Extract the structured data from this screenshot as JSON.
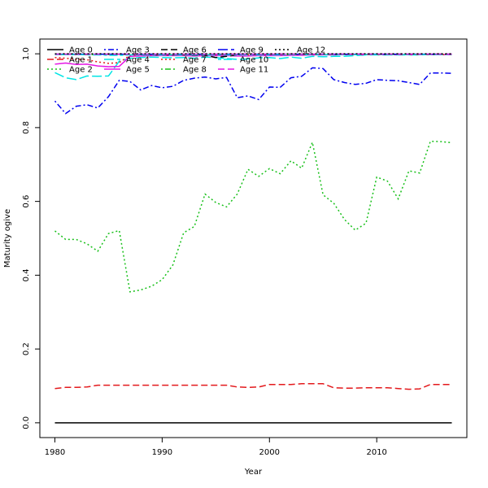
{
  "chart_data": {
    "type": "line",
    "title": "",
    "xlabel": "Year",
    "ylabel": "Maturity ogive",
    "xlim": [
      1978.6,
      2018.4
    ],
    "ylim": [
      -0.04,
      1.04
    ],
    "xticks": [
      1980,
      1990,
      2000,
      2010
    ],
    "yticks": [
      0.0,
      0.2,
      0.4,
      0.6,
      0.8,
      1.0
    ],
    "grid": false,
    "legend_position": "top-left",
    "x": [
      1980,
      1981,
      1982,
      1983,
      1984,
      1985,
      1986,
      1987,
      1988,
      1989,
      1990,
      1991,
      1992,
      1993,
      1994,
      1995,
      1996,
      1997,
      1998,
      1999,
      2000,
      2001,
      2002,
      2003,
      2004,
      2005,
      2006,
      2007,
      2008,
      2009,
      2010,
      2011,
      2012,
      2013,
      2014,
      2015,
      2016,
      2017
    ],
    "series": [
      {
        "name": "Age 0",
        "color": "#000000",
        "dash": "solid",
        "values": [
          0,
          0,
          0,
          0,
          0,
          0,
          0,
          0,
          0,
          0,
          0,
          0,
          0,
          0,
          0,
          0,
          0,
          0,
          0,
          0,
          0,
          0,
          0,
          0,
          0,
          0,
          0,
          0,
          0,
          0,
          0,
          0,
          0,
          0,
          0,
          0,
          0,
          0
        ]
      },
      {
        "name": "Age 1",
        "color": "#e3191c",
        "dash": "dashed",
        "values": [
          0.093,
          0.096,
          0.096,
          0.097,
          0.102,
          0.102,
          0.102,
          0.102,
          0.102,
          0.102,
          0.102,
          0.102,
          0.102,
          0.102,
          0.102,
          0.102,
          0.102,
          0.097,
          0.096,
          0.097,
          0.104,
          0.104,
          0.104,
          0.106,
          0.106,
          0.106,
          0.095,
          0.094,
          0.094,
          0.095,
          0.095,
          0.095,
          0.093,
          0.091,
          0.092,
          0.104,
          0.104,
          0.104
        ]
      },
      {
        "name": "Age 2",
        "color": "#18c01a",
        "dash": "dotted",
        "values": [
          0.52,
          0.497,
          0.497,
          0.485,
          0.465,
          0.513,
          0.521,
          0.355,
          0.36,
          0.37,
          0.388,
          0.428,
          0.515,
          0.532,
          0.62,
          0.597,
          0.585,
          0.62,
          0.687,
          0.668,
          0.689,
          0.675,
          0.71,
          0.69,
          0.76,
          0.618,
          0.595,
          0.551,
          0.522,
          0.541,
          0.666,
          0.655,
          0.607,
          0.683,
          0.677,
          0.763,
          0.762,
          0.759
        ]
      },
      {
        "name": "Age 3",
        "color": "#0000f0",
        "dash": "dashdot",
        "values": [
          0.872,
          0.838,
          0.858,
          0.862,
          0.853,
          0.884,
          0.928,
          0.925,
          0.902,
          0.914,
          0.908,
          0.912,
          0.928,
          0.934,
          0.937,
          0.932,
          0.936,
          0.881,
          0.886,
          0.876,
          0.91,
          0.909,
          0.935,
          0.939,
          0.962,
          0.96,
          0.93,
          0.922,
          0.917,
          0.92,
          0.93,
          0.928,
          0.927,
          0.922,
          0.917,
          0.948,
          0.948,
          0.947
        ]
      },
      {
        "name": "Age 4",
        "color": "#00e5e5",
        "dash": "longdash",
        "values": [
          0.949,
          0.935,
          0.93,
          0.94,
          0.939,
          0.94,
          0.98,
          0.988,
          0.99,
          0.991,
          0.99,
          0.989,
          0.99,
          0.988,
          0.991,
          0.99,
          0.987,
          0.985,
          0.986,
          0.989,
          0.99,
          0.987,
          0.991,
          0.988,
          0.993,
          0.992,
          0.993,
          0.993,
          0.995,
          0.997,
          0.997,
          0.997,
          0.997,
          0.997,
          0.997,
          0.998,
          0.998,
          0.998
        ]
      },
      {
        "name": "Age 5",
        "color": "#e518e5",
        "dash": "solid",
        "values": [
          0.972,
          0.975,
          0.971,
          0.972,
          0.967,
          0.965,
          0.966,
          0.993,
          0.994,
          0.995,
          0.995,
          0.995,
          0.995,
          0.994,
          0.995,
          0.995,
          0.995,
          0.994,
          0.994,
          0.995,
          0.995,
          0.995,
          0.996,
          0.996,
          0.997,
          0.997,
          0.997,
          0.998,
          0.998,
          0.998,
          0.998,
          0.998,
          0.998,
          0.998,
          0.998,
          0.998,
          0.998,
          0.998
        ]
      },
      {
        "name": "Age 6",
        "color": "#000000",
        "dash": "dashed",
        "values": [
          0.999,
          0.999,
          0.999,
          0.999,
          0.999,
          0.999,
          0.999,
          0.998,
          0.997,
          0.997,
          0.997,
          0.997,
          0.997,
          0.996,
          0.996,
          0.99,
          0.993,
          0.997,
          0.998,
          0.998,
          0.998,
          0.999,
          0.999,
          0.999,
          0.999,
          0.999,
          0.999,
          0.999,
          0.999,
          0.999,
          0.999,
          0.999,
          0.999,
          0.999,
          0.999,
          0.999,
          0.999,
          0.999
        ]
      },
      {
        "name": "Age 7",
        "color": "#e3191c",
        "dash": "dotted",
        "values": [
          0.99,
          0.988,
          0.985,
          0.984,
          0.978,
          0.974,
          0.976,
          0.996,
          0.997,
          0.997,
          0.997,
          0.997,
          0.997,
          0.997,
          0.997,
          0.997,
          0.997,
          0.997,
          0.997,
          0.997,
          0.998,
          0.998,
          0.998,
          0.998,
          0.998,
          0.998,
          0.998,
          0.998,
          0.998,
          0.998,
          0.998,
          0.998,
          0.998,
          0.998,
          0.998,
          0.998,
          0.998,
          0.998
        ]
      },
      {
        "name": "Age 8",
        "color": "#18c01a",
        "dash": "dashdot",
        "values": [
          0.998,
          0.998,
          0.998,
          0.998,
          0.998,
          0.998,
          0.998,
          0.998,
          0.998,
          0.998,
          0.998,
          0.998,
          0.998,
          0.998,
          0.998,
          0.998,
          0.998,
          0.998,
          0.998,
          0.998,
          0.998,
          0.998,
          0.998,
          0.998,
          0.998,
          0.998,
          0.998,
          0.998,
          0.998,
          0.998,
          0.998,
          0.998,
          0.998,
          0.998,
          0.998,
          0.998,
          0.998,
          0.998
        ]
      },
      {
        "name": "Age 9",
        "color": "#0000f0",
        "dash": "longdash",
        "values": [
          0.999,
          0.999,
          0.999,
          0.999,
          0.999,
          0.999,
          0.999,
          0.999,
          0.999,
          0.999,
          0.999,
          0.999,
          0.999,
          0.999,
          0.999,
          0.999,
          0.999,
          0.999,
          0.999,
          0.999,
          0.999,
          0.999,
          0.999,
          0.999,
          0.999,
          0.999,
          0.999,
          0.999,
          0.999,
          0.999,
          0.999,
          0.999,
          0.999,
          0.999,
          0.999,
          0.999,
          0.999,
          0.999
        ]
      },
      {
        "name": "Age 10",
        "color": "#00e5e5",
        "dash": "twodash",
        "values": [
          0.998,
          0.998,
          0.998,
          0.997,
          0.997,
          0.996,
          0.996,
          0.997,
          0.997,
          0.997,
          0.997,
          0.997,
          0.997,
          0.997,
          0.997,
          0.997,
          0.997,
          0.997,
          0.997,
          0.997,
          0.997,
          0.997,
          0.998,
          0.998,
          0.998,
          0.998,
          0.998,
          0.998,
          0.998,
          0.998,
          0.998,
          0.998,
          0.998,
          0.998,
          0.998,
          0.998,
          0.998,
          0.998
        ]
      },
      {
        "name": "Age 11",
        "color": "#e518e5",
        "dash": "dashed",
        "values": [
          0.999,
          0.999,
          0.999,
          0.999,
          0.999,
          0.999,
          0.999,
          0.999,
          0.999,
          0.999,
          0.999,
          0.999,
          0.999,
          0.999,
          0.999,
          0.999,
          0.999,
          0.999,
          0.999,
          0.999,
          0.999,
          0.999,
          0.999,
          0.999,
          0.999,
          0.999,
          0.999,
          0.999,
          0.999,
          0.999,
          0.999,
          0.999,
          0.999,
          0.999,
          0.999,
          0.999,
          0.999,
          0.999
        ]
      },
      {
        "name": "Age 12",
        "color": "#000000",
        "dash": "dotted",
        "values": [
          1,
          1,
          1,
          1,
          1,
          1,
          1,
          1,
          1,
          1,
          1,
          1,
          1,
          1,
          1,
          1,
          1,
          1,
          1,
          1,
          1,
          1,
          1,
          1,
          1,
          1,
          1,
          1,
          1,
          1,
          1,
          1,
          1,
          1,
          1,
          1,
          1,
          1
        ]
      }
    ]
  }
}
